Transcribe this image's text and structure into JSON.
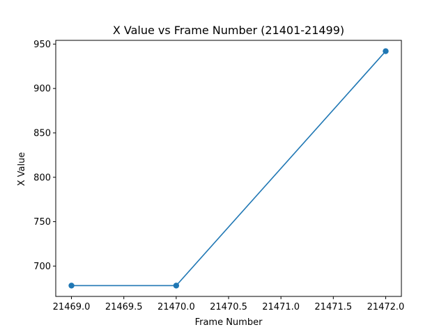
{
  "chart_data": {
    "type": "line",
    "title": "X Value vs Frame Number (21401-21499)",
    "xlabel": "Frame Number",
    "ylabel": "X Value",
    "xlim": [
      21468.85,
      21472.15
    ],
    "ylim": [
      665.8,
      954.2
    ],
    "xticks": [
      21469.0,
      21469.5,
      21470.0,
      21470.5,
      21471.0,
      21471.5,
      21472.0
    ],
    "xtick_labels": [
      "21469.0",
      "21469.5",
      "21470.0",
      "21470.5",
      "21471.0",
      "21471.5",
      "21472.0"
    ],
    "yticks": [
      700,
      750,
      800,
      850,
      900,
      950
    ],
    "ytick_labels": [
      "700",
      "750",
      "800",
      "850",
      "900",
      "950"
    ],
    "grid": false,
    "legend": false,
    "series": [
      {
        "color": "#1f77b4",
        "marker": "circle",
        "x": [
          21469,
          21470,
          21472
        ],
        "y": [
          678,
          678,
          942
        ]
      }
    ]
  }
}
